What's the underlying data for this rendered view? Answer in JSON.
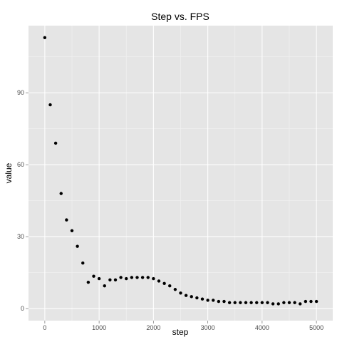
{
  "chart_data": {
    "type": "scatter",
    "title": "Step vs. FPS",
    "xlabel": "step",
    "ylabel": "value",
    "xlim": [
      -300,
      5300
    ],
    "ylim": [
      -5,
      118
    ],
    "x_ticks": [
      0,
      1000,
      2000,
      3000,
      4000,
      5000
    ],
    "y_ticks": [
      0,
      30,
      60,
      90
    ],
    "grid": true,
    "panel_background": "#e5e5e5",
    "grid_color": "#ffffff",
    "point_color": "#000000",
    "x": [
      0,
      100,
      200,
      300,
      400,
      500,
      600,
      700,
      800,
      900,
      1000,
      1100,
      1200,
      1300,
      1400,
      1500,
      1600,
      1700,
      1800,
      1900,
      2000,
      2100,
      2200,
      2300,
      2400,
      2500,
      2600,
      2700,
      2800,
      2900,
      3000,
      3100,
      3200,
      3300,
      3400,
      3500,
      3600,
      3700,
      3800,
      3900,
      4000,
      4100,
      4200,
      4300,
      4400,
      4500,
      4600,
      4700,
      4800,
      4900,
      5000
    ],
    "y": [
      113,
      85,
      69,
      48,
      37,
      32.5,
      26,
      19,
      11,
      13.5,
      12.5,
      9.5,
      12,
      12,
      13,
      12.5,
      13,
      13,
      13,
      13,
      12.5,
      11.5,
      10.5,
      9.5,
      8,
      6.5,
      5.5,
      5,
      4.5,
      4,
      3.5,
      3.5,
      3,
      3,
      2.5,
      2.5,
      2.5,
      2.5,
      2.5,
      2.5,
      2.5,
      2.5,
      2,
      2,
      2.5,
      2.5,
      2.5,
      2,
      3,
      3,
      3
    ]
  }
}
